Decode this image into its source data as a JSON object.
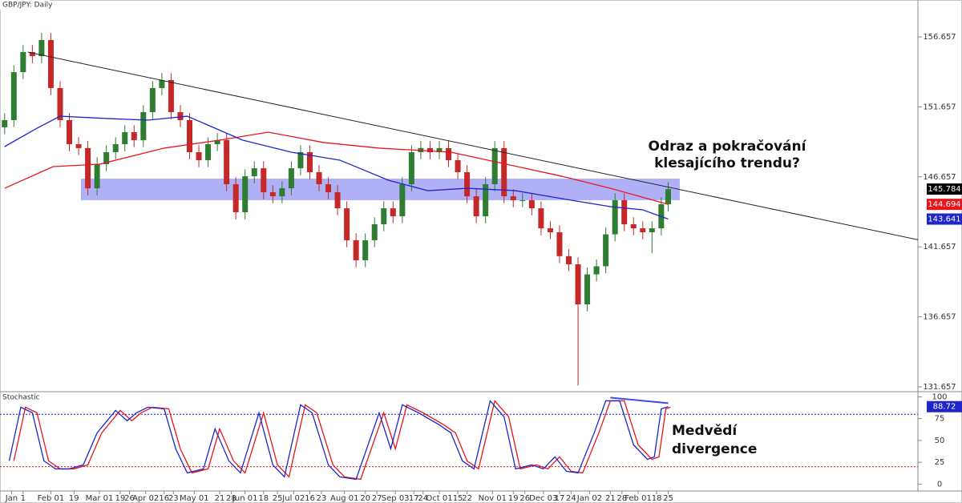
{
  "chart_data": [
    {
      "type": "candlestick",
      "title": "GBP/JPY: Daily",
      "xlim": [
        -2,
        395
      ],
      "ylim": [
        131.37,
        159.29
      ],
      "xticks": [
        {
          "value": 3,
          "label": "Jan"
        },
        {
          "value": 8,
          "label": "1"
        },
        {
          "value": 20,
          "label": "Feb 01"
        },
        {
          "value": 30,
          "label": "19"
        },
        {
          "value": 41,
          "label": "Mar 01"
        },
        {
          "value": 50,
          "label": "19"
        },
        {
          "value": 54,
          "label": "26"
        },
        {
          "value": 61,
          "label": "Apr 02"
        },
        {
          "value": 69,
          "label": "16"
        },
        {
          "value": 73,
          "label": "23"
        },
        {
          "value": 82,
          "label": "May 01"
        },
        {
          "value": 93,
          "label": "21"
        },
        {
          "value": 98,
          "label": "28"
        },
        {
          "value": 104,
          "label": "Jun 01"
        },
        {
          "value": 112,
          "label": "18"
        },
        {
          "value": 118,
          "label": "25"
        },
        {
          "value": 125,
          "label": "Jul 02"
        },
        {
          "value": 132,
          "label": "16"
        },
        {
          "value": 137,
          "label": "23"
        },
        {
          "value": 147,
          "label": "Aug 01"
        },
        {
          "value": 156,
          "label": "20"
        },
        {
          "value": 161,
          "label": "27"
        },
        {
          "value": 169,
          "label": "Sep 03"
        },
        {
          "value": 177,
          "label": "17"
        },
        {
          "value": 181,
          "label": "24"
        },
        {
          "value": 188,
          "label": "Oct 01"
        },
        {
          "value": 196,
          "label": "15"
        },
        {
          "value": 200,
          "label": "22"
        },
        {
          "value": 211,
          "label": "Nov 01"
        },
        {
          "value": 220,
          "label": "19"
        },
        {
          "value": 225,
          "label": "26"
        },
        {
          "value": 233,
          "label": "Dec 03"
        },
        {
          "value": 240,
          "label": "17"
        },
        {
          "value": 245,
          "label": "24"
        },
        {
          "value": 253,
          "label": "Jan 02"
        },
        {
          "value": 262,
          "label": "21"
        },
        {
          "value": 267,
          "label": "28"
        },
        {
          "value": 274,
          "label": "Feb 01"
        },
        {
          "value": 282,
          "label": "18"
        },
        {
          "value": 287,
          "label": "25"
        }
      ],
      "yticks": [
        131.657,
        136.657,
        141.657,
        146.657,
        151.657,
        156.657
      ],
      "up_color": "#2e7d32",
      "down_color": "#c62828",
      "x": [
        0,
        4,
        8,
        12,
        16,
        20,
        24,
        28,
        32,
        36,
        40,
        44,
        48,
        52,
        56,
        60,
        64,
        68,
        72,
        76,
        80,
        84,
        88,
        92,
        96,
        100,
        104,
        108,
        112,
        116,
        120,
        124,
        128,
        132,
        136,
        140,
        144,
        148,
        152,
        156,
        160,
        164,
        168,
        172,
        176,
        180,
        184,
        188,
        192,
        196,
        200,
        204,
        208,
        212,
        216,
        220,
        224,
        228,
        232,
        236,
        240,
        244,
        248,
        252,
        256,
        260,
        264,
        268,
        272,
        276,
        280,
        284,
        287
      ],
      "open": [
        150.2,
        150.71,
        154.14,
        155.57,
        155.28,
        156.43,
        153.0,
        150.71,
        148.99,
        148.71,
        145.84,
        147.56,
        148.42,
        148.99,
        149.85,
        149.28,
        151.28,
        153.0,
        153.57,
        151.28,
        150.71,
        148.42,
        147.85,
        148.99,
        149.28,
        146.13,
        144.13,
        146.7,
        147.27,
        145.56,
        145.27,
        145.84,
        147.27,
        148.42,
        146.99,
        146.13,
        145.56,
        144.41,
        142.13,
        140.7,
        142.13,
        143.27,
        144.41,
        143.84,
        146.13,
        148.42,
        148.71,
        148.42,
        148.71,
        147.85,
        146.99,
        145.27,
        143.84,
        146.13,
        148.71,
        145.27,
        144.99,
        144.99,
        144.41,
        142.98,
        142.7,
        140.99,
        140.41,
        137.55,
        139.69,
        140.27,
        142.55,
        144.99,
        143.27,
        142.98,
        142.7,
        142.98,
        144.7
      ],
      "high": [
        151.21,
        154.64,
        156.07,
        156.07,
        156.93,
        156.93,
        153.5,
        151.21,
        149.49,
        149.21,
        148.06,
        148.92,
        149.49,
        150.35,
        150.35,
        151.78,
        153.5,
        154.07,
        154.07,
        151.78,
        151.21,
        148.92,
        149.49,
        149.78,
        149.78,
        146.63,
        147.2,
        147.77,
        147.77,
        146.06,
        146.34,
        147.77,
        148.92,
        148.92,
        147.49,
        146.63,
        146.06,
        144.91,
        142.63,
        142.63,
        143.77,
        144.91,
        144.91,
        146.63,
        148.92,
        149.21,
        149.21,
        149.21,
        149.21,
        148.35,
        147.49,
        145.77,
        146.63,
        149.21,
        149.21,
        145.77,
        145.49,
        145.49,
        144.91,
        143.48,
        143.2,
        141.49,
        140.91,
        140.19,
        140.77,
        143.05,
        145.49,
        145.49,
        143.77,
        143.48,
        143.48,
        145.2,
        146.28
      ],
      "low": [
        149.7,
        150.21,
        153.64,
        154.78,
        154.78,
        152.5,
        150.21,
        148.49,
        148.21,
        145.34,
        145.34,
        147.06,
        147.92,
        148.49,
        148.78,
        148.78,
        150.78,
        152.5,
        150.78,
        150.21,
        147.92,
        147.35,
        147.35,
        148.49,
        145.63,
        143.63,
        143.63,
        146.2,
        145.06,
        144.77,
        144.77,
        145.34,
        146.77,
        146.49,
        145.63,
        145.06,
        143.91,
        141.63,
        140.2,
        140.2,
        141.63,
        142.77,
        143.34,
        143.34,
        145.63,
        147.92,
        147.92,
        147.92,
        147.35,
        146.49,
        144.77,
        143.34,
        143.34,
        145.63,
        144.77,
        144.49,
        144.49,
        143.91,
        142.48,
        142.2,
        140.49,
        139.91,
        131.75,
        137.05,
        139.19,
        139.77,
        142.05,
        142.77,
        142.48,
        142.2,
        141.2,
        142.48,
        144.2
      ],
      "close": [
        150.71,
        154.14,
        155.57,
        155.28,
        156.43,
        153.0,
        150.71,
        148.99,
        148.71,
        145.84,
        147.56,
        148.42,
        148.99,
        149.85,
        149.28,
        151.28,
        153.0,
        153.57,
        151.28,
        150.71,
        148.42,
        147.85,
        148.99,
        149.28,
        146.13,
        144.13,
        146.7,
        147.27,
        145.56,
        145.27,
        145.84,
        147.27,
        148.42,
        146.99,
        146.13,
        145.56,
        144.41,
        142.13,
        140.7,
        142.13,
        143.27,
        144.41,
        143.84,
        146.13,
        148.42,
        148.71,
        148.42,
        148.71,
        147.85,
        146.99,
        145.27,
        143.84,
        146.13,
        148.71,
        145.27,
        144.99,
        144.99,
        144.41,
        142.98,
        142.7,
        140.99,
        140.41,
        137.55,
        139.69,
        140.27,
        142.55,
        144.99,
        143.27,
        142.98,
        142.7,
        142.98,
        144.7,
        145.78
      ],
      "series": [
        {
          "color": "#e8151b",
          "x": [
            0,
            21,
            41,
            69,
            93,
            114,
            138,
            162,
            193,
            217,
            241,
            262,
            287
          ],
          "values": [
            145.84,
            147.39,
            147.56,
            148.71,
            149.28,
            149.85,
            149.11,
            148.71,
            148.42,
            147.56,
            146.7,
            145.84,
            144.694
          ]
        },
        {
          "color": "#1f26c9",
          "x": [
            0,
            14,
            24,
            45,
            62,
            79,
            103,
            124,
            145,
            166,
            183,
            200,
            221,
            241,
            262,
            276,
            287
          ],
          "values": [
            148.82,
            150.13,
            150.99,
            150.82,
            150.71,
            150.99,
            149.28,
            148.42,
            147.85,
            146.42,
            145.67,
            145.84,
            145.67,
            145.1,
            144.53,
            144.3,
            143.641
          ]
        }
      ],
      "trendline": {
        "color": "#222222",
        "x": [
          10,
          396
        ],
        "values": [
          155.57,
          142.13
        ]
      },
      "zone": {
        "color": "#7b7bf2",
        "x": [
          33,
          292
        ],
        "values": [
          146.53,
          144.99
        ]
      },
      "price_labels": [
        {
          "value": 145.784,
          "color": "#000000"
        },
        {
          "value": 144.694,
          "color": "#e8151b"
        },
        {
          "value": 143.641,
          "color": "#1f26c9"
        }
      ],
      "annotation": [
        "Odraz a pokračování",
        "klesajícího trendu?"
      ]
    },
    {
      "type": "line",
      "title": "Stochastic",
      "xlim": [
        -2,
        395
      ],
      "ylim": [
        -7,
        105
      ],
      "yticks": [
        0,
        25,
        50,
        75,
        100
      ],
      "levels": [
        {
          "value": 80,
          "color": "#1f26c9"
        },
        {
          "value": 20,
          "color": "#e8151b"
        }
      ],
      "series": [
        {
          "color": "#e8151b",
          "x": [
            4,
            9,
            14,
            19,
            24,
            30,
            36,
            42,
            50,
            55,
            59,
            64,
            71,
            76,
            81,
            88,
            93,
            99,
            104,
            112,
            118,
            123,
            130,
            135,
            142,
            147,
            154,
            164,
            169,
            174,
            181,
            190,
            195,
            200,
            205,
            212,
            218,
            223,
            230,
            235,
            240,
            245,
            250,
            257,
            262,
            268,
            274,
            280,
            283,
            286,
            288
          ],
          "values": [
            26.6,
            88.1,
            81.7,
            26.6,
            17.4,
            17.4,
            22.0,
            58.7,
            84.4,
            72.5,
            81.7,
            88.1,
            86.2,
            40.4,
            12.8,
            17.4,
            63.3,
            26.6,
            12.8,
            81.7,
            22.0,
            8.3,
            90.8,
            81.7,
            22.0,
            8.3,
            5.5,
            81.7,
            40.4,
            90.8,
            81.7,
            67.9,
            58.7,
            26.6,
            17.4,
            95.4,
            77.1,
            17.4,
            22.0,
            17.4,
            31.2,
            14.7,
            12.8,
            58.7,
            95.4,
            95.4,
            45.0,
            28.4,
            31.2,
            86.2,
            88.1
          ]
        },
        {
          "color": "#1f26c9",
          "x": [
            2,
            7,
            12,
            17,
            22,
            28,
            34,
            40,
            48,
            53,
            57,
            62,
            69,
            74,
            79,
            86,
            91,
            97,
            102,
            110,
            116,
            121,
            128,
            133,
            140,
            145,
            152,
            162,
            167,
            172,
            179,
            188,
            193,
            198,
            203,
            210,
            216,
            221,
            228,
            233,
            238,
            243,
            248,
            255,
            260,
            266,
            272,
            278,
            281,
            284,
            287
          ],
          "values": [
            26.6,
            88.1,
            81.7,
            26.6,
            17.4,
            17.4,
            22.0,
            58.7,
            84.4,
            72.5,
            81.7,
            88.1,
            86.2,
            40.4,
            12.8,
            17.4,
            63.3,
            26.6,
            12.8,
            81.7,
            22.0,
            8.3,
            90.8,
            81.7,
            22.0,
            8.3,
            5.5,
            81.7,
            40.4,
            90.8,
            81.7,
            67.9,
            58.7,
            26.6,
            17.4,
            95.4,
            77.1,
            17.4,
            22.0,
            17.4,
            31.2,
            14.7,
            12.8,
            58.7,
            95.4,
            95.4,
            45.0,
            28.4,
            31.2,
            86.2,
            88.72
          ]
        }
      ],
      "divergence": {
        "color": "#3b4fe0",
        "x": [
          262,
          287
        ],
        "values": [
          99.1,
          92.7
        ]
      },
      "value_label": {
        "value": 88.72,
        "color": "#1f26c9"
      },
      "annotation": [
        "Medvědí",
        "divergence"
      ]
    }
  ]
}
